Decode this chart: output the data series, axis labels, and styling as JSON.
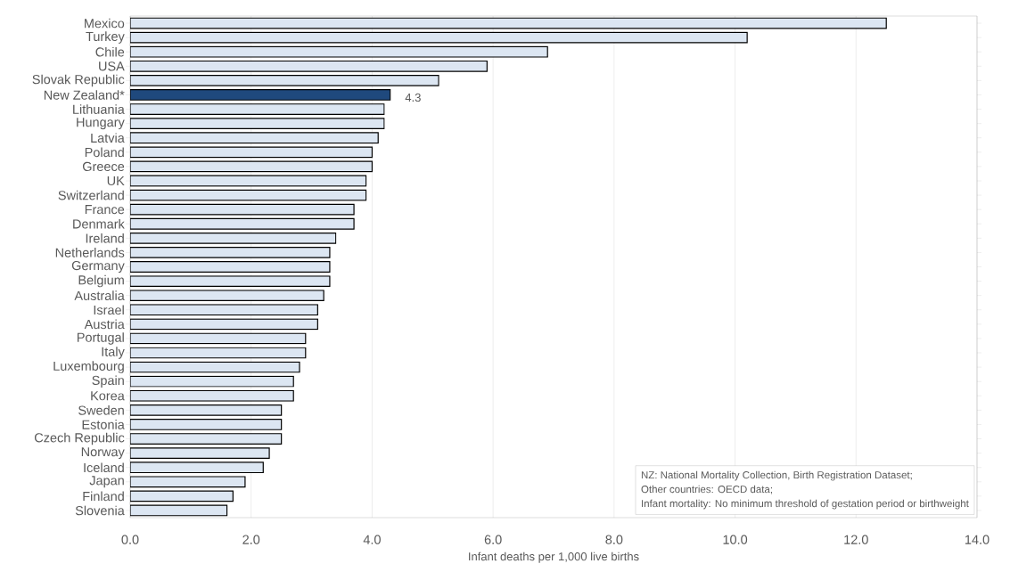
{
  "chart_data": {
    "type": "bar",
    "orientation": "horizontal",
    "xlabel": "Infant deaths per 1,000 live births",
    "categories": [
      "Mexico",
      "Turkey",
      "Chile",
      "USA",
      "Slovak Republic",
      "New Zealand*",
      "Lithuania",
      "Hungary",
      "Latvia",
      "Poland",
      "Greece",
      "UK",
      "Switzerland",
      "France",
      "Denmark",
      "Ireland",
      "Netherlands",
      "Germany",
      "Belgium",
      "Australia",
      "Israel",
      "Austria",
      "Portugal",
      "Italy",
      "Luxembourg",
      "Spain",
      "Korea",
      "Sweden",
      "Estonia",
      "Czech Republic",
      "Norway",
      "Iceland",
      "Japan",
      "Finland",
      "Slovenia"
    ],
    "values": [
      12.5,
      10.2,
      6.9,
      5.9,
      5.1,
      4.3,
      4.2,
      4.2,
      4.1,
      4.0,
      4.0,
      3.9,
      3.9,
      3.7,
      3.7,
      3.4,
      3.3,
      3.3,
      3.3,
      3.2,
      3.1,
      3.1,
      2.9,
      2.9,
      2.8,
      2.7,
      2.7,
      2.5,
      2.5,
      2.5,
      2.3,
      2.2,
      1.9,
      1.7,
      1.6
    ],
    "colors": [
      "#dce6f2",
      "#dce6f2",
      "#dce6f2",
      "#dce6f2",
      "#dce6f2",
      "#1f497d",
      "#dce6f2",
      "#dce6f2",
      "#dce6f2",
      "#dce6f2",
      "#dce6f2",
      "#dce6f2",
      "#dce6f2",
      "#dce6f2",
      "#dce6f2",
      "#dce6f2",
      "#dce6f2",
      "#dce6f2",
      "#dce6f2",
      "#dce6f2",
      "#dce6f2",
      "#dce6f2",
      "#dce6f2",
      "#dce6f2",
      "#dce6f2",
      "#dce6f2",
      "#dce6f2",
      "#dce6f2",
      "#dce6f2",
      "#dce6f2",
      "#dce6f2",
      "#dce6f2",
      "#dce6f2",
      "#dce6f2",
      "#dce6f2"
    ],
    "value_labels": [
      null,
      null,
      null,
      null,
      null,
      "4.3",
      null,
      null,
      null,
      null,
      null,
      null,
      null,
      null,
      null,
      null,
      null,
      null,
      null,
      null,
      null,
      null,
      null,
      null,
      null,
      null,
      null,
      null,
      null,
      null,
      null,
      null,
      null,
      null,
      null
    ],
    "xlim": [
      0,
      14
    ],
    "xticks": [
      {
        "value": 0,
        "label": "0.0"
      },
      {
        "value": 2,
        "label": "2.0"
      },
      {
        "value": 4,
        "label": "4.0"
      },
      {
        "value": 6,
        "label": "6.0"
      },
      {
        "value": 8,
        "label": "8.0"
      },
      {
        "value": 10,
        "label": "10.0"
      },
      {
        "value": 12,
        "label": "12.0"
      },
      {
        "value": 14,
        "label": "14.0"
      }
    ],
    "grid": "x",
    "annotations": [
      "NZ: National Mortality Collection, Birth Registration Dataset;",
      "Other countries: OECD data;",
      "Infant mortality: No minimum threshold of gestation period or birthweight"
    ]
  }
}
